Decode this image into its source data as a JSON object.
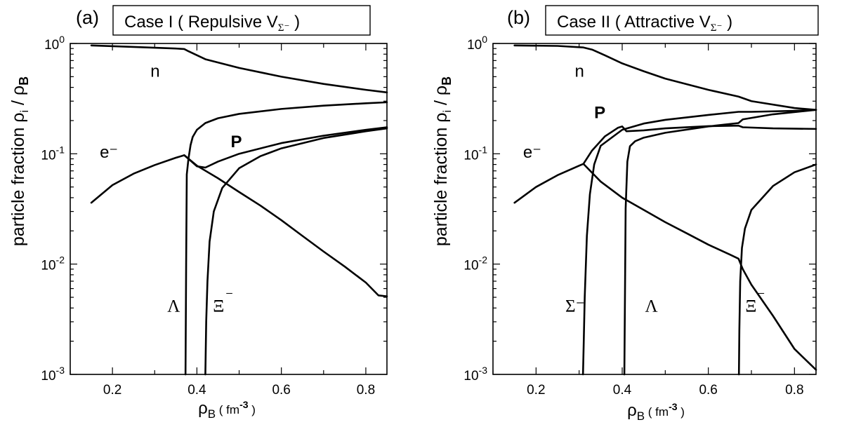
{
  "chart_data": [
    {
      "type": "line",
      "panel_label": "(a)",
      "title": "Case I ( Repulsive V",
      "title_sub": "Σ⁻",
      "title_end": " )",
      "ylabel": "particle fraction  ρ",
      "ylabel_sub": "i",
      "ylabel_tail": " / ρ",
      "ylabel_tail_sub": "B",
      "xlabel": "ρ",
      "xlabel_sub": "B",
      "xlabel_unit": " ( fm",
      "xlabel_unit_sup": "-3",
      "xlabel_end": " )",
      "xlim": [
        0.1,
        0.85
      ],
      "ylim": [
        0.001,
        1
      ],
      "yscale": "log",
      "x_ticks": [
        {
          "v": 0.2,
          "label": "0.2"
        },
        {
          "v": 0.4,
          "label": "0.4"
        },
        {
          "v": 0.6,
          "label": "0.6"
        },
        {
          "v": 0.8,
          "label": "0.8"
        }
      ],
      "y_ticks": [
        {
          "v": 1,
          "base": "10",
          "exp": "0"
        },
        {
          "v": 0.1,
          "base": "10",
          "exp": "-1"
        },
        {
          "v": 0.01,
          "base": "10",
          "exp": "-2"
        },
        {
          "v": 0.001,
          "base": "10",
          "exp": "-3"
        }
      ],
      "series": [
        {
          "name": "n",
          "x": [
            0.15,
            0.25,
            0.35,
            0.37,
            0.38,
            0.42,
            0.5,
            0.6,
            0.7,
            0.8,
            0.85
          ],
          "y": [
            0.96,
            0.93,
            0.9,
            0.89,
            0.85,
            0.72,
            0.6,
            0.5,
            0.43,
            0.38,
            0.36
          ]
        },
        {
          "name": "P",
          "x": [
            0.15,
            0.2,
            0.25,
            0.3,
            0.35,
            0.37,
            0.38,
            0.4,
            0.42,
            0.45,
            0.5,
            0.6,
            0.7,
            0.8,
            0.85
          ],
          "y": [
            0.036,
            0.052,
            0.066,
            0.079,
            0.092,
            0.097,
            0.09,
            0.077,
            0.075,
            0.085,
            0.1,
            0.125,
            0.146,
            0.165,
            0.174
          ]
        },
        {
          "name": "e⁻",
          "x": [
            0.37,
            0.4,
            0.45,
            0.5,
            0.55,
            0.6,
            0.65,
            0.7,
            0.75,
            0.8,
            0.83,
            0.85
          ],
          "y": [
            0.097,
            0.078,
            0.06,
            0.045,
            0.034,
            0.025,
            0.018,
            0.013,
            0.0095,
            0.0068,
            0.0052,
            0.0051
          ]
        },
        {
          "name": "Λ",
          "x": [
            0.373,
            0.3745,
            0.376,
            0.38,
            0.385,
            0.39,
            0.4,
            0.42,
            0.45,
            0.5,
            0.6,
            0.7,
            0.8,
            0.85
          ],
          "y": [
            0.001,
            0.01,
            0.065,
            0.09,
            0.12,
            0.142,
            0.165,
            0.19,
            0.21,
            0.23,
            0.255,
            0.273,
            0.287,
            0.293
          ]
        },
        {
          "name": "Ξ⁻",
          "x": [
            0.42,
            0.422,
            0.425,
            0.43,
            0.44,
            0.46,
            0.5,
            0.55,
            0.6,
            0.7,
            0.8,
            0.85
          ],
          "y": [
            0.001,
            0.003,
            0.007,
            0.016,
            0.03,
            0.049,
            0.074,
            0.095,
            0.112,
            0.139,
            0.16,
            0.17
          ]
        }
      ],
      "annotations": [
        {
          "text": "n",
          "x": 0.29,
          "y": 0.5,
          "style": "sans"
        },
        {
          "text": "P",
          "x": 0.48,
          "y": 0.115,
          "style": "sans-bold"
        },
        {
          "text": "e⁻",
          "x": 0.17,
          "y": 0.092,
          "style": "sans"
        },
        {
          "text": "Λ",
          "x": 0.33,
          "y": 0.0037,
          "style": "serif"
        },
        {
          "text": "Ξ",
          "x": 0.438,
          "y": 0.0037,
          "style": "serif"
        },
        {
          "text": "⁻",
          "x": 0.467,
          "y": 0.0046,
          "style": "serif"
        }
      ]
    },
    {
      "type": "line",
      "panel_label": "(b)",
      "title": "Case II ( Attractive V",
      "title_sub": "Σ⁻",
      "title_end": " )",
      "ylabel": "particle fraction  ρ",
      "ylabel_sub": "i",
      "ylabel_tail": " / ρ",
      "ylabel_tail_sub": "B",
      "xlabel": "ρ",
      "xlabel_sub": "B",
      "xlabel_unit": " ( fm",
      "xlabel_unit_sup": "-3",
      "xlabel_end": " )",
      "xlim": [
        0.1,
        0.85
      ],
      "ylim": [
        0.001,
        1
      ],
      "yscale": "log",
      "x_ticks": [
        {
          "v": 0.2,
          "label": "0.2"
        },
        {
          "v": 0.4,
          "label": "0.4"
        },
        {
          "v": 0.6,
          "label": "0.6"
        },
        {
          "v": 0.8,
          "label": "0.8"
        }
      ],
      "y_ticks": [
        {
          "v": 1,
          "base": "10",
          "exp": "0"
        },
        {
          "v": 0.1,
          "base": "10",
          "exp": "-1"
        },
        {
          "v": 0.01,
          "base": "10",
          "exp": "-2"
        },
        {
          "v": 0.001,
          "base": "10",
          "exp": "-3"
        }
      ],
      "series": [
        {
          "name": "n",
          "x": [
            0.15,
            0.25,
            0.31,
            0.33,
            0.36,
            0.4,
            0.45,
            0.5,
            0.6,
            0.67,
            0.7,
            0.8,
            0.85
          ],
          "y": [
            0.96,
            0.95,
            0.92,
            0.88,
            0.78,
            0.66,
            0.56,
            0.48,
            0.38,
            0.33,
            0.3,
            0.26,
            0.25
          ]
        },
        {
          "name": "P",
          "x": [
            0.15,
            0.2,
            0.25,
            0.3,
            0.31,
            0.33,
            0.36,
            0.39,
            0.4,
            0.41,
            0.45,
            0.5,
            0.6,
            0.67,
            0.68,
            0.75,
            0.85
          ],
          "y": [
            0.036,
            0.05,
            0.064,
            0.078,
            0.081,
            0.107,
            0.144,
            0.172,
            0.177,
            0.16,
            0.163,
            0.17,
            0.178,
            0.18,
            0.174,
            0.17,
            0.168
          ]
        },
        {
          "name": "e⁻",
          "x": [
            0.31,
            0.35,
            0.4,
            0.45,
            0.5,
            0.55,
            0.6,
            0.65,
            0.67,
            0.68,
            0.7,
            0.75,
            0.8,
            0.85
          ],
          "y": [
            0.081,
            0.056,
            0.04,
            0.031,
            0.024,
            0.019,
            0.015,
            0.0122,
            0.0112,
            0.009,
            0.0065,
            0.0034,
            0.0017,
            0.0011
          ]
        },
        {
          "name": "Σ⁻",
          "x": [
            0.309,
            0.3105,
            0.313,
            0.318,
            0.325,
            0.335,
            0.35,
            0.4,
            0.45,
            0.5,
            0.6,
            0.67,
            0.7,
            0.8,
            0.85
          ],
          "y": [
            0.001,
            0.0018,
            0.005,
            0.018,
            0.043,
            0.08,
            0.118,
            0.165,
            0.188,
            0.203,
            0.225,
            0.24,
            0.24,
            0.245,
            0.25
          ]
        },
        {
          "name": "Λ",
          "x": [
            0.405,
            0.4065,
            0.408,
            0.412,
            0.418,
            0.43,
            0.45,
            0.5,
            0.6,
            0.67,
            0.68,
            0.75,
            0.85
          ],
          "y": [
            0.001,
            0.0055,
            0.032,
            0.085,
            0.117,
            0.13,
            0.14,
            0.155,
            0.177,
            0.19,
            0.205,
            0.228,
            0.25
          ]
        },
        {
          "name": "Ξ⁻",
          "x": [
            0.671,
            0.672,
            0.674,
            0.678,
            0.685,
            0.7,
            0.75,
            0.8,
            0.85
          ],
          "y": [
            0.001,
            0.0025,
            0.007,
            0.014,
            0.021,
            0.031,
            0.051,
            0.068,
            0.08
          ]
        }
      ],
      "annotations": [
        {
          "text": "n",
          "x": 0.29,
          "y": 0.5,
          "style": "sans"
        },
        {
          "text": "P",
          "x": 0.335,
          "y": 0.21,
          "style": "sans-bold"
        },
        {
          "text": "e⁻",
          "x": 0.17,
          "y": 0.092,
          "style": "sans"
        },
        {
          "text": "Σ⁻",
          "x": 0.268,
          "y": 0.0037,
          "style": "serif"
        },
        {
          "text": "Λ",
          "x": 0.453,
          "y": 0.0037,
          "style": "serif"
        },
        {
          "text": "Ξ",
          "x": 0.686,
          "y": 0.0037,
          "style": "serif"
        },
        {
          "text": "⁻",
          "x": 0.713,
          "y": 0.0046,
          "style": "serif"
        }
      ]
    }
  ]
}
